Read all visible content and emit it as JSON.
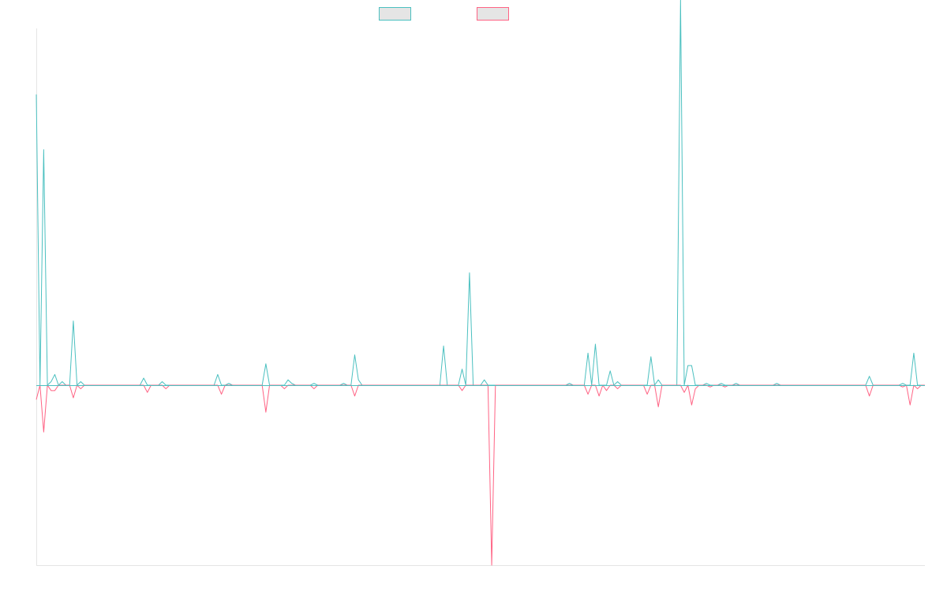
{
  "chart_data": {
    "type": "line",
    "title": "",
    "xlabel": "",
    "ylabel": "",
    "grid": false,
    "legend_position": "top-center",
    "xlim": [
      0,
      240
    ],
    "ylim": [
      -100,
      200
    ],
    "baseline": 0,
    "series": [
      {
        "color": "#4bc0c0",
        "legend_fill": "#e5e5e5",
        "direction": "up",
        "values": [
          [
            0,
            163
          ],
          [
            2,
            132
          ],
          [
            4,
            2
          ],
          [
            5,
            6
          ],
          [
            7,
            2
          ],
          [
            10,
            36
          ],
          [
            12,
            2
          ],
          [
            29,
            4
          ],
          [
            34,
            2
          ],
          [
            49,
            6
          ],
          [
            52,
            1
          ],
          [
            62,
            12
          ],
          [
            68,
            3
          ],
          [
            69,
            1
          ],
          [
            75,
            1
          ],
          [
            83,
            1
          ],
          [
            86,
            17
          ],
          [
            87,
            3
          ],
          [
            110,
            22
          ],
          [
            115,
            9
          ],
          [
            117,
            63
          ],
          [
            121,
            3
          ],
          [
            144,
            1
          ],
          [
            149,
            18
          ],
          [
            151,
            23
          ],
          [
            155,
            8
          ],
          [
            157,
            2
          ],
          [
            166,
            16
          ],
          [
            168,
            3
          ],
          [
            174,
            216
          ],
          [
            176,
            11
          ],
          [
            177,
            11
          ],
          [
            181,
            1
          ],
          [
            185,
            1
          ],
          [
            189,
            1
          ],
          [
            200,
            1
          ],
          [
            225,
            5
          ],
          [
            234,
            1
          ],
          [
            237,
            18
          ]
        ]
      },
      {
        "color": "#ff6384",
        "legend_fill": "#e5e5e5",
        "direction": "down",
        "values": [
          [
            0,
            8
          ],
          [
            2,
            26
          ],
          [
            4,
            3
          ],
          [
            5,
            3
          ],
          [
            10,
            7
          ],
          [
            12,
            2
          ],
          [
            30,
            4
          ],
          [
            35,
            2
          ],
          [
            50,
            5
          ],
          [
            62,
            15
          ],
          [
            67,
            2
          ],
          [
            75,
            2
          ],
          [
            86,
            6
          ],
          [
            115,
            3
          ],
          [
            123,
            100
          ],
          [
            149,
            5
          ],
          [
            152,
            6
          ],
          [
            154,
            3
          ],
          [
            157,
            2
          ],
          [
            165,
            5
          ],
          [
            168,
            12
          ],
          [
            175,
            4
          ],
          [
            177,
            11
          ],
          [
            178,
            2
          ],
          [
            182,
            1
          ],
          [
            186,
            1
          ],
          [
            225,
            6
          ],
          [
            234,
            1
          ],
          [
            236,
            11
          ],
          [
            238,
            2
          ]
        ]
      }
    ]
  }
}
